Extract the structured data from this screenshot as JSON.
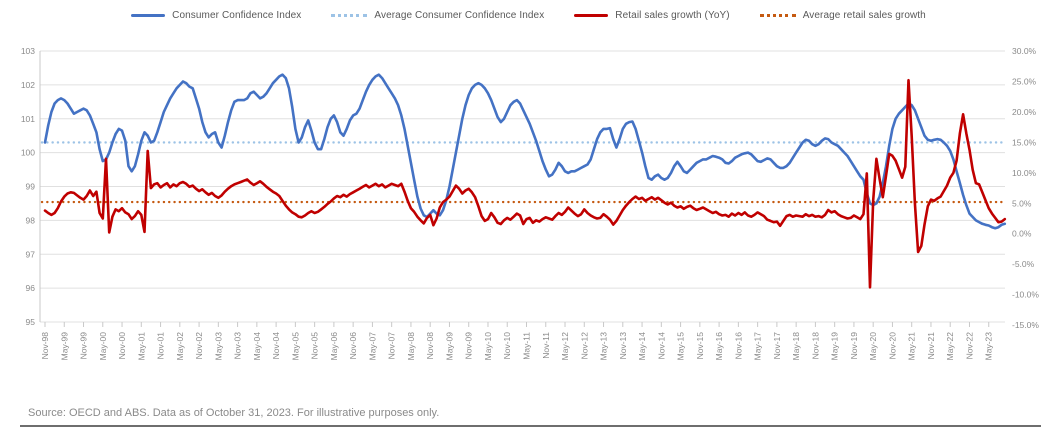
{
  "legend": {
    "items": [
      {
        "label": "Consumer Confidence Index",
        "color": "#4472C4",
        "style": "solid"
      },
      {
        "label": "Average Consumer Confidence Index",
        "color": "#9DC3E6",
        "style": "dotted"
      },
      {
        "label": "Retail sales growth (YoY)",
        "color": "#C00000",
        "style": "solid"
      },
      {
        "label": "Average retail sales growth",
        "color": "#C55A11",
        "style": "dotted"
      }
    ]
  },
  "footer": {
    "source_note": "Source: OECD and ABS. Data as of October 31, 2023. For illustrative purposes only."
  },
  "chart_data": {
    "type": "line",
    "title": "",
    "x_start": "Nov-1998",
    "x_end": "Oct-2023",
    "x_frequency": "monthly",
    "grid": "horizontal",
    "legend_position": "top",
    "left_axis": {
      "min": 95,
      "max": 103,
      "ticks": [
        103,
        102,
        101,
        100,
        99,
        98,
        97,
        96,
        95
      ],
      "label": "Consumer Confidence Index"
    },
    "right_axis": {
      "min": -15,
      "max": 30,
      "ticks": [
        "30.0%",
        "25.0%",
        "20.0%",
        "15.0%",
        "10.0%",
        "5.0%",
        "0.0%",
        "-5.0%",
        "-10.0%",
        "-15.0%"
      ],
      "label": "Retail sales growth (YoY)"
    },
    "x_tick_labels": [
      "Nov-98",
      "May-99",
      "Nov-99",
      "May-00",
      "Nov-00",
      "May-01",
      "Nov-01",
      "May-02",
      "Nov-02",
      "May-03",
      "Nov-03",
      "May-04",
      "Nov-04",
      "May-05",
      "Nov-05",
      "May-06",
      "Nov-06",
      "May-07",
      "Nov-07",
      "May-08",
      "Nov-08",
      "May-09",
      "Nov-09",
      "May-10",
      "Nov-10",
      "May-11",
      "Nov-11",
      "May-12",
      "Nov-12",
      "May-13",
      "Nov-13",
      "May-14",
      "Nov-14",
      "May-15",
      "Nov-15",
      "May-16",
      "Nov-16",
      "May-17",
      "Nov-17",
      "May-18",
      "Nov-18",
      "May-19",
      "Nov-19",
      "May-20",
      "Nov-20",
      "May-21",
      "Nov-21",
      "May-22",
      "Nov-22",
      "May-23"
    ],
    "series": [
      {
        "name": "Consumer Confidence Index",
        "axis": "left",
        "color": "#4472C4",
        "style": "solid",
        "values": [
          100.3,
          100.8,
          101.2,
          101.45,
          101.55,
          101.6,
          101.55,
          101.45,
          101.3,
          101.15,
          101.2,
          101.25,
          101.3,
          101.25,
          101.1,
          100.85,
          100.6,
          100.1,
          99.75,
          99.8,
          100.0,
          100.3,
          100.55,
          100.7,
          100.65,
          100.35,
          99.6,
          99.45,
          99.6,
          99.95,
          100.35,
          100.6,
          100.5,
          100.3,
          100.35,
          100.6,
          100.9,
          101.2,
          101.4,
          101.6,
          101.75,
          101.9,
          102.0,
          102.1,
          102.05,
          101.95,
          101.9,
          101.6,
          101.3,
          100.9,
          100.6,
          100.45,
          100.55,
          100.6,
          100.3,
          100.15,
          100.5,
          100.9,
          101.25,
          101.5,
          101.55,
          101.55,
          101.55,
          101.6,
          101.75,
          101.8,
          101.7,
          101.6,
          101.65,
          101.75,
          101.9,
          102.05,
          102.15,
          102.25,
          102.3,
          102.2,
          101.9,
          101.35,
          100.7,
          100.3,
          100.45,
          100.75,
          100.95,
          100.65,
          100.3,
          100.1,
          100.1,
          100.4,
          100.75,
          101.0,
          101.1,
          100.9,
          100.6,
          100.5,
          100.7,
          100.95,
          101.1,
          101.15,
          101.3,
          101.55,
          101.8,
          102.0,
          102.15,
          102.25,
          102.3,
          102.2,
          102.05,
          101.9,
          101.75,
          101.6,
          101.4,
          101.1,
          100.7,
          100.2,
          99.7,
          99.2,
          98.7,
          98.35,
          98.15,
          98.1,
          98.2,
          98.3,
          98.2,
          98.15,
          98.3,
          98.6,
          99.0,
          99.5,
          100.0,
          100.5,
          101.0,
          101.4,
          101.7,
          101.9,
          102.0,
          102.05,
          102.0,
          101.9,
          101.75,
          101.55,
          101.3,
          101.05,
          100.9,
          101.0,
          101.2,
          101.4,
          101.5,
          101.55,
          101.45,
          101.25,
          101.05,
          100.85,
          100.6,
          100.35,
          100.05,
          99.75,
          99.5,
          99.3,
          99.35,
          99.5,
          99.7,
          99.6,
          99.45,
          99.4,
          99.45,
          99.45,
          99.5,
          99.55,
          99.6,
          99.65,
          99.8,
          100.1,
          100.4,
          100.6,
          100.7,
          100.7,
          100.72,
          100.4,
          100.15,
          100.4,
          100.7,
          100.85,
          100.9,
          100.92,
          100.7,
          100.35,
          100.0,
          99.6,
          99.25,
          99.2,
          99.3,
          99.35,
          99.25,
          99.2,
          99.25,
          99.4,
          99.6,
          99.73,
          99.6,
          99.45,
          99.4,
          99.5,
          99.6,
          99.7,
          99.75,
          99.8,
          99.8,
          99.85,
          99.9,
          99.88,
          99.85,
          99.8,
          99.7,
          99.68,
          99.75,
          99.85,
          99.9,
          99.95,
          99.98,
          100.0,
          99.95,
          99.85,
          99.75,
          99.73,
          99.78,
          99.83,
          99.8,
          99.7,
          99.6,
          99.55,
          99.55,
          99.6,
          99.7,
          99.85,
          100.0,
          100.15,
          100.3,
          100.38,
          100.35,
          100.25,
          100.2,
          100.25,
          100.35,
          100.42,
          100.4,
          100.3,
          100.25,
          100.2,
          100.1,
          100.0,
          99.9,
          99.75,
          99.6,
          99.45,
          99.3,
          99.2,
          98.8,
          98.5,
          98.45,
          98.5,
          98.7,
          99.1,
          99.6,
          100.2,
          100.7,
          101.0,
          101.15,
          101.25,
          101.35,
          101.45,
          101.4,
          101.25,
          101.0,
          100.75,
          100.5,
          100.38,
          100.35,
          100.38,
          100.4,
          100.38,
          100.3,
          100.2,
          100.05,
          99.8,
          99.45,
          99.1,
          98.75,
          98.45,
          98.2,
          98.1,
          98.0,
          97.95,
          97.9,
          97.87,
          97.85,
          97.8,
          97.77,
          97.8,
          97.87,
          97.9
        ]
      },
      {
        "name": "Average Consumer Confidence Index",
        "axis": "left",
        "color": "#9DC3E6",
        "style": "dotted",
        "average_value": 100.3
      },
      {
        "name": "Retail sales growth (YoY)",
        "axis": "right",
        "color": "#C00000",
        "style": "solid",
        "values": [
          3.8,
          3.4,
          3.1,
          3.4,
          4.2,
          5.3,
          6.1,
          6.6,
          6.8,
          6.7,
          6.3,
          5.9,
          5.6,
          6.2,
          7.1,
          6.2,
          6.9,
          3.4,
          2.5,
          12.3,
          0.2,
          2.8,
          4.0,
          3.7,
          4.2,
          3.5,
          3.2,
          2.4,
          2.9,
          3.7,
          3.1,
          0.3,
          13.6,
          7.5,
          8.1,
          8.3,
          7.6,
          8.0,
          8.3,
          7.6,
          8.1,
          7.8,
          8.3,
          8.5,
          8.2,
          7.7,
          7.9,
          7.4,
          7.0,
          7.3,
          6.8,
          6.4,
          6.7,
          6.2,
          5.9,
          6.3,
          6.9,
          7.4,
          7.8,
          8.1,
          8.3,
          8.5,
          8.7,
          8.9,
          8.4,
          8.0,
          8.3,
          8.6,
          8.2,
          7.7,
          7.3,
          6.9,
          6.6,
          6.2,
          5.4,
          4.6,
          4.0,
          3.5,
          3.2,
          2.8,
          2.7,
          3.0,
          3.4,
          3.7,
          3.4,
          3.6,
          4.0,
          4.4,
          4.9,
          5.3,
          5.8,
          6.2,
          6.0,
          6.4,
          6.1,
          6.5,
          6.8,
          7.1,
          7.4,
          7.7,
          8.0,
          7.6,
          7.9,
          8.2,
          7.8,
          8.1,
          7.6,
          7.9,
          8.2,
          8.0,
          7.8,
          8.2,
          6.9,
          5.4,
          4.2,
          3.6,
          2.8,
          2.2,
          1.7,
          2.6,
          3.1,
          1.4,
          2.5,
          4.3,
          5.2,
          5.6,
          6.1,
          7.0,
          7.9,
          7.4,
          6.6,
          7.1,
          7.4,
          6.8,
          6.0,
          4.5,
          2.9,
          2.1,
          2.4,
          3.4,
          2.7,
          1.8,
          1.6,
          2.2,
          2.6,
          2.3,
          2.8,
          3.3,
          3.0,
          1.6,
          2.4,
          2.6,
          1.8,
          2.2,
          2.0,
          2.4,
          2.7,
          2.5,
          2.3,
          2.9,
          3.4,
          3.1,
          3.6,
          4.3,
          3.8,
          3.3,
          2.9,
          3.2,
          4.0,
          3.4,
          3.0,
          2.7,
          2.5,
          2.6,
          3.2,
          2.8,
          2.3,
          1.5,
          2.1,
          3.0,
          3.9,
          4.6,
          5.2,
          5.7,
          6.1,
          5.7,
          5.9,
          5.4,
          5.7,
          6.0,
          5.6,
          5.9,
          5.5,
          5.1,
          4.8,
          5.1,
          4.6,
          4.3,
          4.5,
          4.1,
          4.4,
          4.6,
          4.2,
          3.9,
          4.1,
          4.3,
          4.0,
          3.7,
          3.4,
          3.6,
          3.2,
          3.0,
          3.1,
          2.8,
          3.3,
          3.0,
          3.4,
          3.1,
          3.5,
          3.0,
          2.8,
          3.1,
          3.5,
          3.2,
          2.9,
          2.3,
          2.1,
          1.9,
          2.0,
          1.3,
          2.1,
          2.9,
          3.1,
          2.8,
          3.0,
          2.9,
          2.8,
          3.2,
          2.9,
          3.1,
          2.8,
          2.9,
          2.7,
          3.1,
          3.9,
          3.5,
          3.7,
          3.2,
          2.9,
          2.7,
          2.5,
          2.6,
          3.0,
          2.7,
          2.4,
          3.2,
          9.9,
          -8.8,
          5.5,
          12.3,
          9.0,
          6.0,
          9.5,
          13.1,
          12.8,
          12.0,
          10.6,
          9.2,
          11.0,
          25.2,
          16.0,
          5.0,
          -3.0,
          -2.0,
          1.5,
          4.5,
          5.6,
          5.4,
          5.8,
          6.1,
          7.0,
          7.9,
          9.2,
          10.0,
          12.0,
          16.5,
          19.6,
          16.5,
          13.8,
          10.5,
          8.3,
          8.1,
          6.8,
          5.5,
          4.2,
          3.3,
          2.6,
          1.9,
          2.0,
          2.4
        ]
      },
      {
        "name": "Average retail sales growth",
        "axis": "right",
        "color": "#C55A11",
        "style": "dotted",
        "average_value": 5.2
      }
    ]
  }
}
